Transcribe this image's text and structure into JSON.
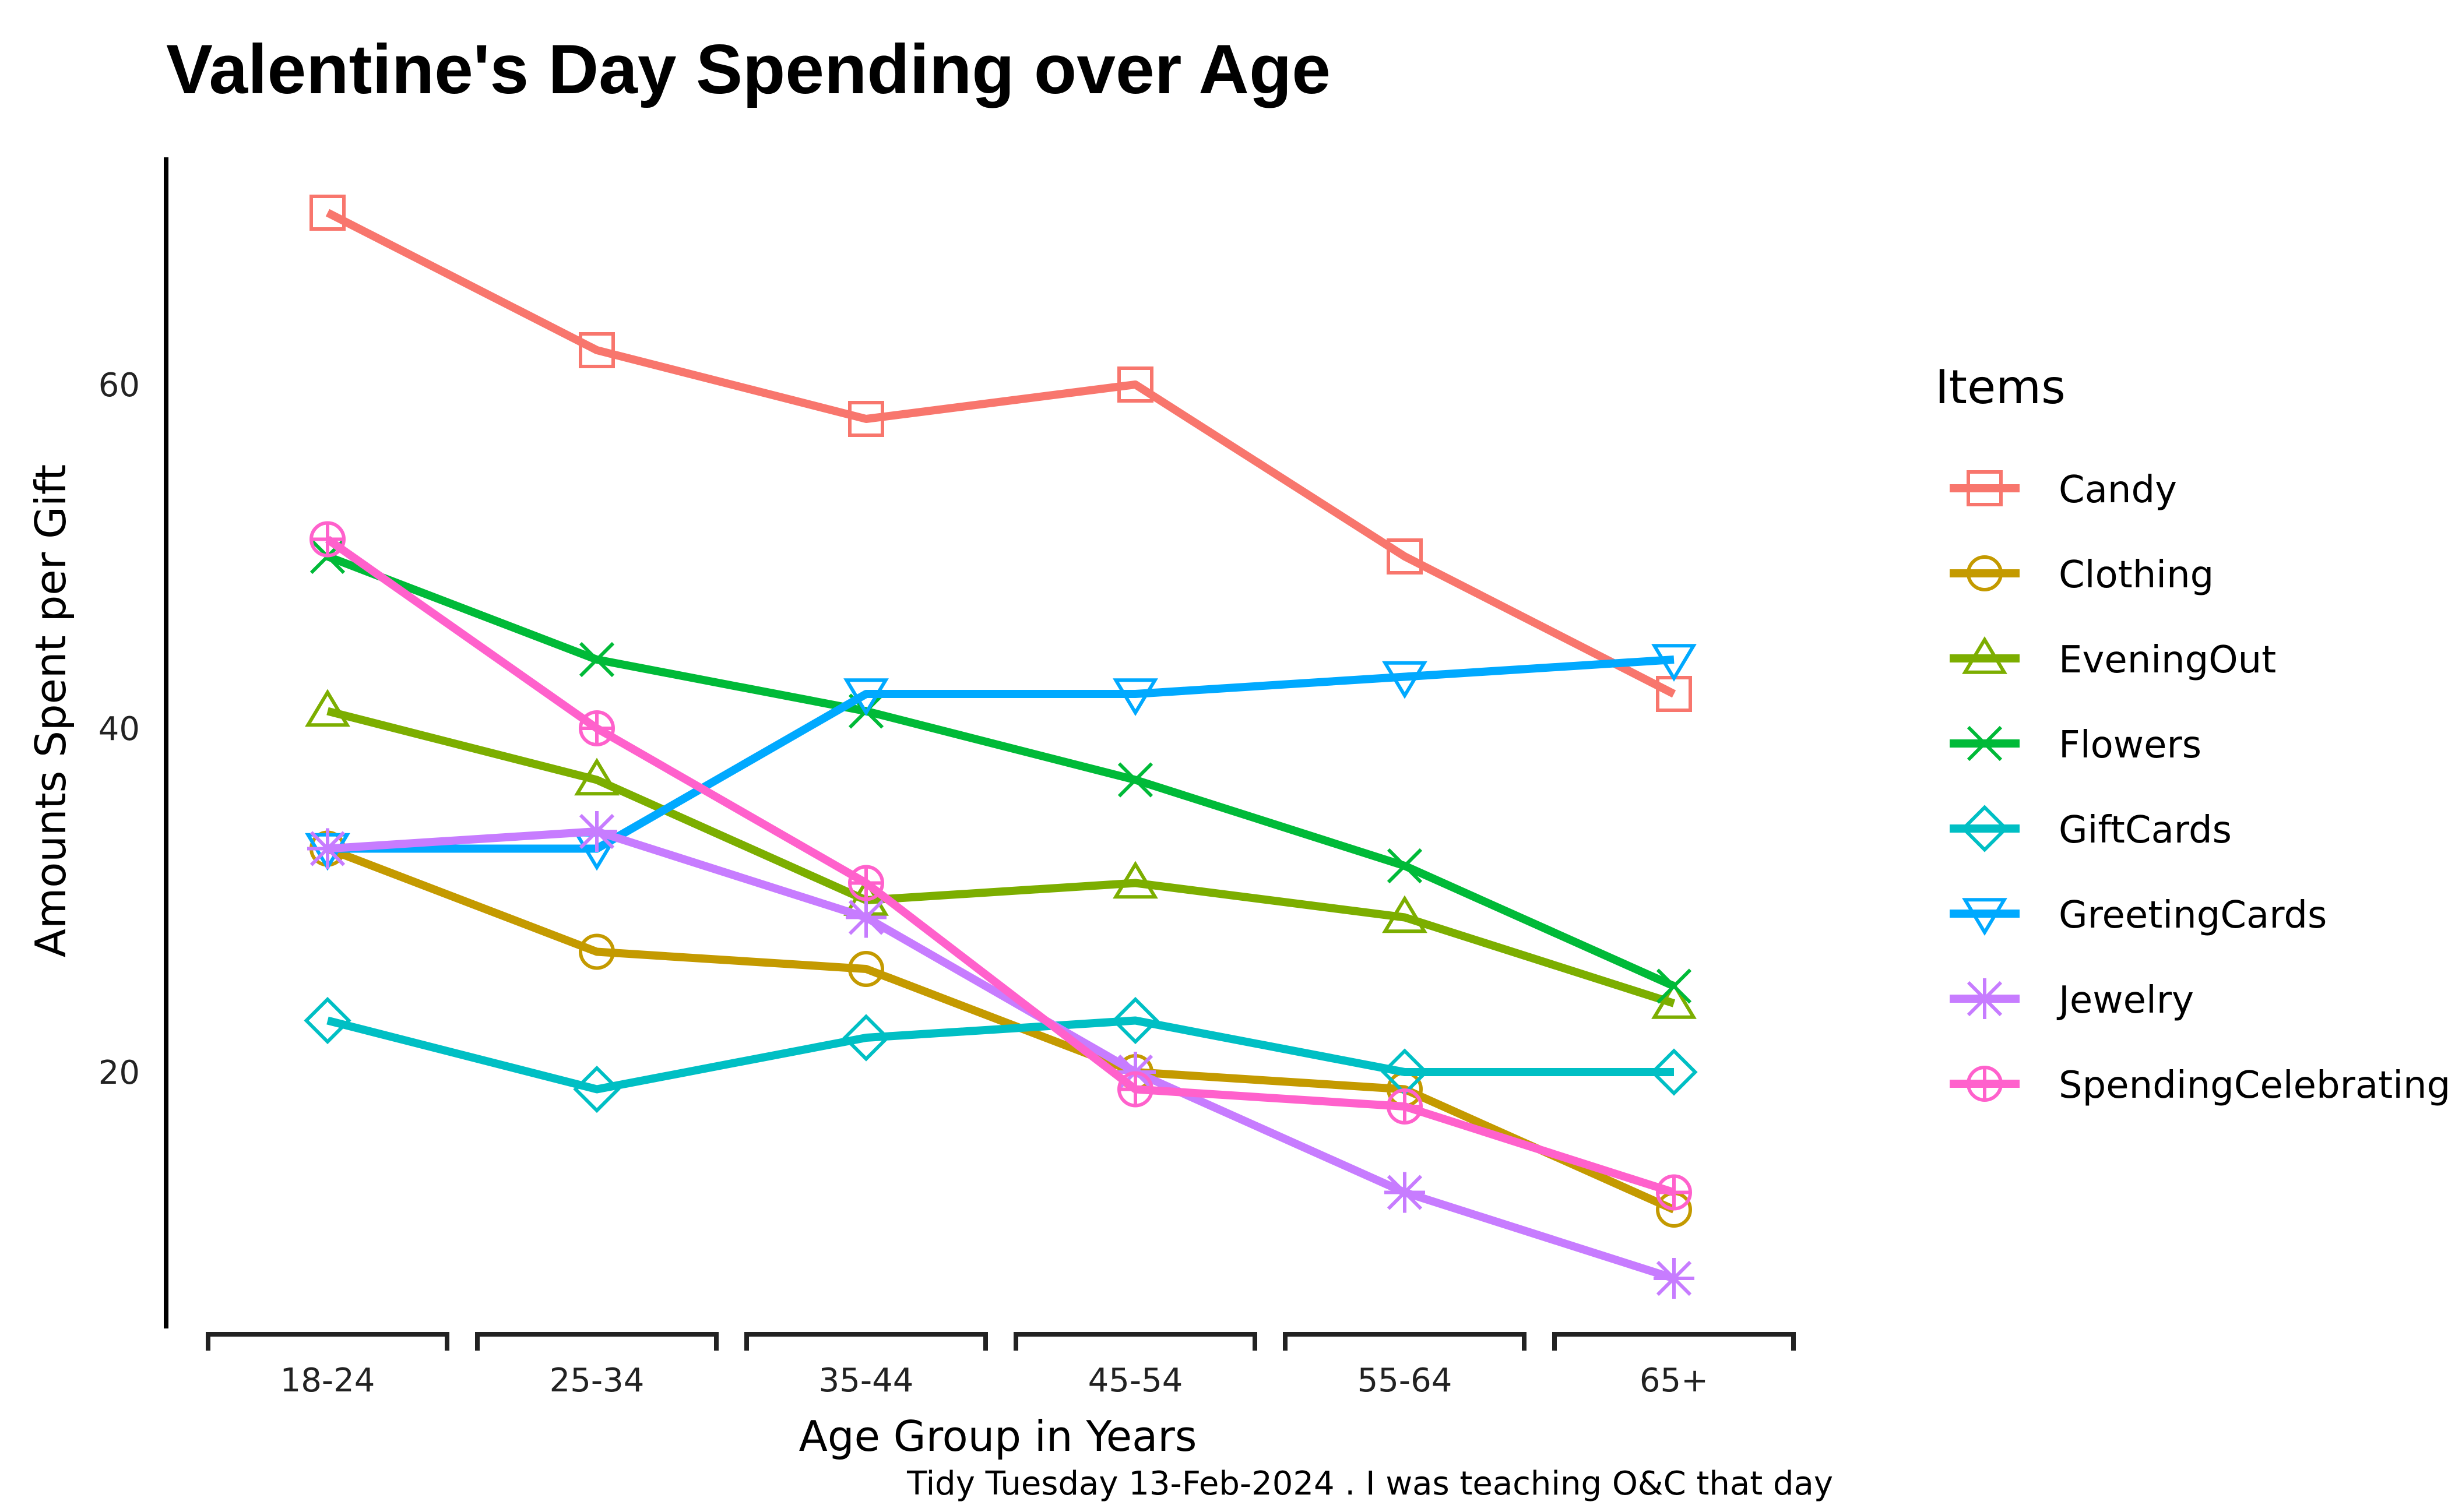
{
  "chart_data": {
    "type": "line",
    "title": "Valentine's Day Spending over Age",
    "xlabel": "Age Group in Years",
    "ylabel": "Amounts Spent per Gift",
    "caption": "Tidy Tuesday 13-Feb-2024 . I was teaching O&C that day",
    "legend_title": "Items",
    "legend_position": "right",
    "grid": false,
    "categories": [
      "18-24",
      "25-34",
      "35-44",
      "45-54",
      "55-64",
      "65+"
    ],
    "ylim": [
      5,
      73
    ],
    "yticks": [
      20,
      40,
      60
    ],
    "series": [
      {
        "name": "Candy",
        "color": "#F8766D",
        "shape": "square",
        "values": [
          70,
          62,
          58,
          60,
          50,
          42
        ]
      },
      {
        "name": "Clothing",
        "color": "#C49A00",
        "shape": "circle",
        "values": [
          33,
          27,
          26,
          20,
          19,
          12
        ]
      },
      {
        "name": "EveningOut",
        "color": "#7CAE00",
        "shape": "triangle-up",
        "values": [
          41,
          37,
          30,
          31,
          29,
          24
        ]
      },
      {
        "name": "Flowers",
        "color": "#00BA38",
        "shape": "cross-x",
        "values": [
          50,
          44,
          41,
          37,
          32,
          25
        ]
      },
      {
        "name": "GiftCards",
        "color": "#00BFC4",
        "shape": "diamond",
        "values": [
          23,
          19,
          22,
          23,
          20,
          20
        ]
      },
      {
        "name": "GreetingCards",
        "color": "#00A9FF",
        "shape": "triangle-down",
        "values": [
          33,
          33,
          42,
          42,
          43,
          44
        ]
      },
      {
        "name": "Jewelry",
        "color": "#C77CFF",
        "shape": "asterisk",
        "values": [
          33,
          34,
          29,
          20,
          13,
          8
        ]
      },
      {
        "name": "SpendingCelebrating",
        "color": "#FF61CC",
        "shape": "circle-plus",
        "values": [
          51,
          40,
          31,
          19,
          18,
          13
        ]
      }
    ]
  }
}
